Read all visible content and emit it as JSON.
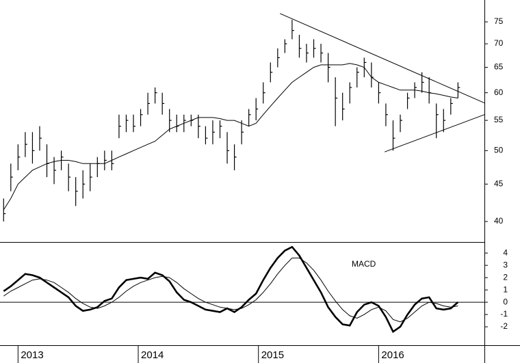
{
  "chart_data": [
    {
      "type": "ohlc",
      "x": [
        2012.88,
        2012.94,
        2013.0,
        2013.06,
        2013.12,
        2013.18,
        2013.24,
        2013.3,
        2013.36,
        2013.42,
        2013.48,
        2013.54,
        2013.6,
        2013.66,
        2013.72,
        2013.78,
        2013.84,
        2013.9,
        2013.96,
        2014.02,
        2014.08,
        2014.14,
        2014.2,
        2014.26,
        2014.32,
        2014.38,
        2014.44,
        2014.5,
        2014.56,
        2014.62,
        2014.68,
        2014.74,
        2014.8,
        2014.86,
        2014.92,
        2014.98,
        2015.04,
        2015.1,
        2015.16,
        2015.22,
        2015.28,
        2015.34,
        2015.4,
        2015.46,
        2015.52,
        2015.58,
        2015.64,
        2015.7,
        2015.76,
        2015.82,
        2015.88,
        2015.94,
        2016.0,
        2016.06,
        2016.12,
        2016.18,
        2016.24,
        2016.3,
        2016.36,
        2016.42,
        2016.48,
        2016.54,
        2016.6,
        2016.66
      ],
      "high": [
        43,
        48,
        51,
        53,
        53,
        54,
        51,
        49,
        50,
        48,
        46,
        47,
        48,
        49,
        50,
        50,
        56,
        56,
        56,
        57,
        60,
        61,
        60,
        57,
        56,
        56,
        56,
        56,
        54,
        55,
        55,
        53,
        51,
        55,
        57,
        59,
        62,
        66,
        69,
        71,
        75.5,
        72,
        70,
        71,
        70,
        68,
        63,
        60,
        62,
        65,
        67,
        66,
        62,
        58,
        55,
        56,
        60,
        62,
        64,
        63,
        58,
        57,
        59,
        62
      ],
      "low": [
        40,
        44,
        47,
        49,
        48,
        50,
        46,
        45,
        47,
        44,
        42,
        43,
        44,
        46,
        47,
        47,
        52,
        53,
        53,
        54,
        56,
        58,
        56,
        53,
        53,
        53,
        54,
        52,
        51,
        51,
        52,
        48,
        47,
        51,
        54,
        55,
        58,
        62,
        65,
        68,
        71,
        67,
        66,
        67,
        66,
        62,
        54,
        55,
        58,
        61,
        63,
        61,
        58,
        54,
        50,
        53,
        57,
        59,
        60,
        58,
        52,
        53,
        56,
        59
      ],
      "close": [
        41,
        46,
        49,
        51,
        50,
        52,
        48,
        47,
        49,
        46,
        44,
        45,
        46,
        48,
        48.5,
        48,
        54,
        55,
        54,
        56,
        58,
        60,
        58,
        55,
        54,
        55,
        55,
        54,
        52,
        53,
        54,
        50,
        49,
        53,
        56,
        57,
        60,
        64,
        67,
        70,
        73,
        69,
        68,
        69,
        68,
        65,
        59,
        57,
        61,
        64,
        66,
        63,
        60,
        56,
        52,
        55,
        59,
        61,
        62,
        60,
        56,
        55,
        58,
        61
      ],
      "moving_average": [
        41.5,
        43,
        45,
        46,
        47,
        47.5,
        48,
        48.3,
        48.5,
        48.5,
        48.3,
        48,
        48,
        48,
        48,
        48.5,
        49,
        49.5,
        50,
        50.5,
        51,
        51.5,
        52.5,
        53.5,
        54,
        54.5,
        55,
        55.5,
        55.5,
        55.5,
        55.3,
        55,
        55,
        54.5,
        54,
        54.5,
        56,
        57.5,
        59,
        60.5,
        62,
        63,
        64,
        65,
        65.5,
        65.5,
        65.5,
        65.5,
        65.8,
        65.5,
        65,
        63,
        62,
        61.5,
        61,
        60.5,
        60.5,
        60.5,
        60.3,
        60,
        59.8,
        59.5,
        59.2,
        59
      ],
      "trendlines": [
        {
          "x": [
            2015.18,
            2016.88
          ],
          "y": [
            77,
            58.1
          ]
        },
        {
          "x": [
            2016.05,
            2016.88
          ],
          "y": [
            49.8,
            56
          ]
        }
      ],
      "color": "#000000",
      "log_scale": true,
      "xlim": [
        2012.85,
        2016.88
      ],
      "ylim": [
        37.66,
        80.35
      ],
      "yticks": [
        40,
        45,
        50,
        55,
        60,
        65,
        70,
        75
      ]
    },
    {
      "type": "line",
      "title": "MACD",
      "x": [
        2012.88,
        2012.94,
        2013.0,
        2013.06,
        2013.12,
        2013.18,
        2013.24,
        2013.3,
        2013.36,
        2013.42,
        2013.48,
        2013.54,
        2013.6,
        2013.66,
        2013.72,
        2013.78,
        2013.84,
        2013.9,
        2013.96,
        2014.02,
        2014.08,
        2014.14,
        2014.2,
        2014.26,
        2014.32,
        2014.38,
        2014.44,
        2014.5,
        2014.56,
        2014.62,
        2014.68,
        2014.74,
        2014.8,
        2014.86,
        2014.92,
        2014.98,
        2015.04,
        2015.1,
        2015.16,
        2015.22,
        2015.28,
        2015.34,
        2015.4,
        2015.46,
        2015.52,
        2015.58,
        2015.64,
        2015.7,
        2015.76,
        2015.82,
        2015.88,
        2015.94,
        2016.0,
        2016.06,
        2016.12,
        2016.18,
        2016.24,
        2016.3,
        2016.36,
        2016.42,
        2016.48,
        2016.54,
        2016.6,
        2016.66
      ],
      "lines": [
        {
          "color": "#000000",
          "width": 2.6,
          "values": [
            0.9,
            1.3,
            1.8,
            2.3,
            2.2,
            2.0,
            1.6,
            1.2,
            0.8,
            0.4,
            -0.3,
            -0.7,
            -0.6,
            -0.4,
            0.1,
            0.3,
            1.2,
            1.8,
            1.9,
            2.0,
            1.9,
            2.4,
            2.2,
            1.7,
            0.8,
            0.2,
            0.0,
            -0.3,
            -0.6,
            -0.7,
            -0.8,
            -0.5,
            -0.8,
            -0.4,
            0.2,
            0.7,
            1.8,
            2.8,
            3.6,
            4.2,
            4.5,
            3.8,
            2.8,
            1.8,
            0.8,
            -0.4,
            -1.2,
            -1.8,
            -1.9,
            -0.8,
            -0.2,
            0.0,
            -0.3,
            -1.2,
            -2.4,
            -2.0,
            -1.0,
            -0.2,
            0.3,
            0.4,
            -0.5,
            -0.6,
            -0.5,
            0.0
          ]
        },
        {
          "color": "#000000",
          "width": 1,
          "values": [
            0.5,
            0.9,
            1.2,
            1.5,
            1.8,
            1.9,
            1.8,
            1.6,
            1.2,
            0.8,
            0.3,
            -0.1,
            -0.4,
            -0.5,
            -0.3,
            0.0,
            0.4,
            0.9,
            1.3,
            1.6,
            1.8,
            2.0,
            2.1,
            2.0,
            1.6,
            1.1,
            0.7,
            0.3,
            0.0,
            -0.2,
            -0.4,
            -0.5,
            -0.6,
            -0.5,
            -0.2,
            0.2,
            0.8,
            1.5,
            2.3,
            3.0,
            3.6,
            3.6,
            3.2,
            2.6,
            1.8,
            0.9,
            0.1,
            -0.6,
            -1.1,
            -1.3,
            -1.0,
            -0.6,
            -0.4,
            -0.7,
            -1.4,
            -1.6,
            -1.3,
            -0.8,
            -0.3,
            0.0,
            -0.1,
            -0.3,
            -0.4,
            -0.3
          ]
        }
      ],
      "xlim": [
        2012.85,
        2016.88
      ],
      "xticks": [
        2013,
        2014,
        2015,
        2016
      ],
      "ylim": [
        -3.5,
        4.9
      ],
      "yticks": [
        -2,
        -1,
        0,
        1,
        2,
        3,
        4
      ]
    }
  ]
}
